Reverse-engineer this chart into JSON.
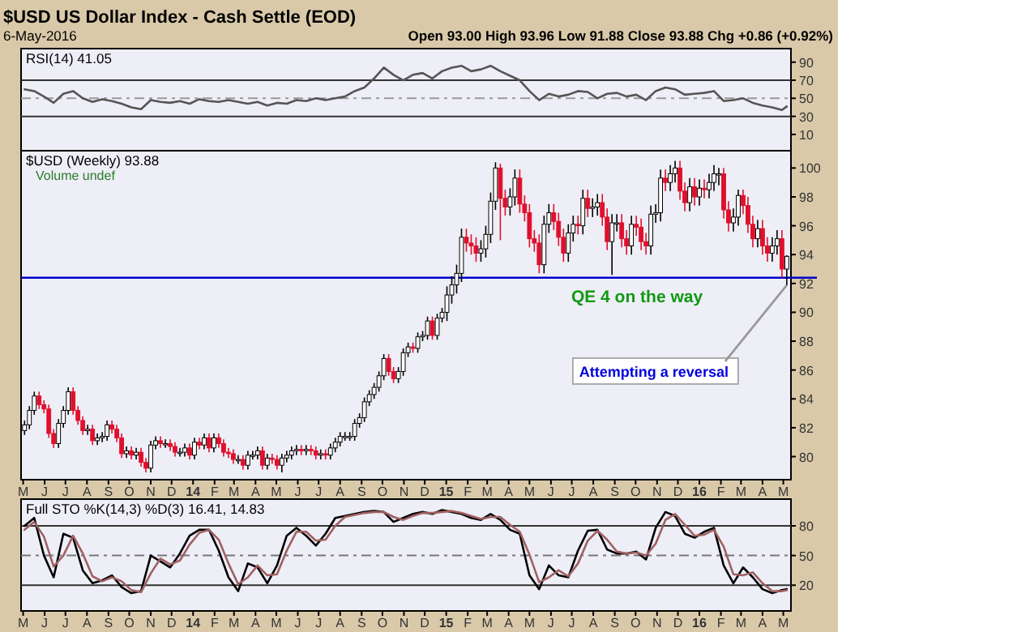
{
  "chart_data": [
    {
      "type": "line",
      "title": "$USD US Dollar Index - Cash Settle (EOD)",
      "subtitle": "6-May-2016",
      "ylabel": "RSI(14) 41.05",
      "annotations": [
        "Open 93.00 High 93.96 Low 91.88 Close 93.88 Chg +0.86 (+0.92%)"
      ],
      "x": [
        "2013-05-03",
        "2013-05-17",
        "2013-05-31",
        "2013-06-14",
        "2013-06-28",
        "2013-07-12",
        "2013-07-26",
        "2013-08-09",
        "2013-08-23",
        "2013-09-06",
        "2013-09-20",
        "2013-10-04",
        "2013-10-18",
        "2013-11-01",
        "2013-11-15",
        "2013-11-29",
        "2013-12-13",
        "2013-12-27",
        "2014-01-10",
        "2014-01-24",
        "2014-02-07",
        "2014-02-21",
        "2014-03-07",
        "2014-03-21",
        "2014-04-04",
        "2014-04-18",
        "2014-05-02",
        "2014-05-16",
        "2014-05-30",
        "2014-06-13",
        "2014-06-27",
        "2014-07-11",
        "2014-07-25",
        "2014-08-08",
        "2014-08-22",
        "2014-09-05",
        "2014-09-19",
        "2014-10-03",
        "2014-10-17",
        "2014-10-31",
        "2014-11-14",
        "2014-11-28",
        "2014-12-12",
        "2014-12-26",
        "2015-01-09",
        "2015-01-23",
        "2015-02-06",
        "2015-02-20",
        "2015-03-06",
        "2015-03-20",
        "2015-04-03",
        "2015-04-17",
        "2015-05-01",
        "2015-05-15",
        "2015-05-29",
        "2015-06-12",
        "2015-06-26",
        "2015-07-10",
        "2015-07-24",
        "2015-08-07",
        "2015-08-21",
        "2015-09-04",
        "2015-09-18",
        "2015-10-02",
        "2015-10-16",
        "2015-10-30",
        "2015-11-13",
        "2015-11-27",
        "2015-12-11",
        "2015-12-25",
        "2016-01-08",
        "2016-01-22",
        "2016-02-05",
        "2016-02-19",
        "2016-03-04",
        "2016-03-18",
        "2016-04-01",
        "2016-04-15",
        "2016-04-29",
        "2016-05-06"
      ],
      "series": [
        {
          "color": "#555555",
          "values": [
            60,
            58,
            52,
            45,
            55,
            58,
            50,
            46,
            49,
            47,
            44,
            40,
            38,
            48,
            46,
            45,
            47,
            44,
            49,
            47,
            46,
            48,
            46,
            44,
            46,
            42,
            45,
            44,
            48,
            47,
            50,
            48,
            50,
            52,
            58,
            62,
            72,
            84,
            76,
            70,
            76,
            78,
            72,
            80,
            84,
            86,
            80,
            82,
            86,
            80,
            75,
            70,
            58,
            48,
            55,
            52,
            54,
            58,
            57,
            50,
            55,
            56,
            52,
            54,
            48,
            58,
            62,
            60,
            54,
            55,
            56,
            58,
            47,
            48,
            50,
            45,
            42,
            40,
            37,
            41
          ]
        }
      ],
      "xlim": [
        "2013-04-28",
        "2016-05-12"
      ],
      "ylim": [
        -8,
        105
      ],
      "yticks": [
        10,
        30,
        50,
        70,
        90
      ],
      "tick_labels": "y",
      "ref_lines": [
        {
          "axis": "y",
          "value": 70,
          "color": "#333333"
        },
        {
          "axis": "y",
          "value": 30,
          "color": "#333333"
        },
        {
          "axis": "y",
          "value": 50,
          "color": "#999999",
          "line_style": "dashed"
        }
      ]
    },
    {
      "type": "candlestick",
      "ylabel": "$USD (Weekly) 93.88",
      "annotations": [
        "Volume undef",
        {
          "text": "Attempting a reversal",
          "x": "2016-05-06",
          "y": 91.88
        }
      ],
      "x": [
        "2013-05-03",
        "2013-05-10",
        "2013-05-17",
        "2013-05-24",
        "2013-05-31",
        "2013-06-07",
        "2013-06-14",
        "2013-06-21",
        "2013-06-28",
        "2013-07-05",
        "2013-07-12",
        "2013-07-19",
        "2013-07-26",
        "2013-08-02",
        "2013-08-09",
        "2013-08-16",
        "2013-08-23",
        "2013-08-30",
        "2013-09-06",
        "2013-09-13",
        "2013-09-20",
        "2013-09-27",
        "2013-10-04",
        "2013-10-11",
        "2013-10-18",
        "2013-10-25",
        "2013-11-01",
        "2013-11-08",
        "2013-11-15",
        "2013-11-22",
        "2013-11-29",
        "2013-12-06",
        "2013-12-13",
        "2013-12-20",
        "2013-12-27",
        "2014-01-03",
        "2014-01-10",
        "2014-01-17",
        "2014-01-24",
        "2014-01-31",
        "2014-02-07",
        "2014-02-14",
        "2014-02-21",
        "2014-02-28",
        "2014-03-07",
        "2014-03-14",
        "2014-03-21",
        "2014-03-28",
        "2014-04-04",
        "2014-04-11",
        "2014-04-18",
        "2014-04-25",
        "2014-05-02",
        "2014-05-09",
        "2014-05-16",
        "2014-05-23",
        "2014-05-30",
        "2014-06-06",
        "2014-06-13",
        "2014-06-20",
        "2014-06-27",
        "2014-07-04",
        "2014-07-11",
        "2014-07-18",
        "2014-07-25",
        "2014-08-01",
        "2014-08-08",
        "2014-08-15",
        "2014-08-22",
        "2014-08-29",
        "2014-09-05",
        "2014-09-12",
        "2014-09-19",
        "2014-09-26",
        "2014-10-03",
        "2014-10-10",
        "2014-10-17",
        "2014-10-24",
        "2014-10-31",
        "2014-11-07",
        "2014-11-14",
        "2014-11-21",
        "2014-11-28",
        "2014-12-05",
        "2014-12-12",
        "2014-12-19",
        "2014-12-26",
        "2015-01-02",
        "2015-01-09",
        "2015-01-16",
        "2015-01-23",
        "2015-01-30",
        "2015-02-06",
        "2015-02-13",
        "2015-02-20",
        "2015-02-27",
        "2015-03-06",
        "2015-03-13",
        "2015-03-20",
        "2015-03-27",
        "2015-04-03",
        "2015-04-10",
        "2015-04-17",
        "2015-04-24",
        "2015-05-01",
        "2015-05-08",
        "2015-05-15",
        "2015-05-22",
        "2015-05-29",
        "2015-06-05",
        "2015-06-12",
        "2015-06-19",
        "2015-06-26",
        "2015-07-03",
        "2015-07-10",
        "2015-07-17",
        "2015-07-24",
        "2015-07-31",
        "2015-08-07",
        "2015-08-14",
        "2015-08-21",
        "2015-08-28",
        "2015-09-04",
        "2015-09-11",
        "2015-09-18",
        "2015-09-25",
        "2015-10-02",
        "2015-10-09",
        "2015-10-16",
        "2015-10-23",
        "2015-10-30",
        "2015-11-06",
        "2015-11-13",
        "2015-11-20",
        "2015-11-27",
        "2015-12-04",
        "2015-12-11",
        "2015-12-18",
        "2015-12-25",
        "2016-01-01",
        "2016-01-08",
        "2016-01-15",
        "2016-01-22",
        "2016-01-29",
        "2016-02-05",
        "2016-02-12",
        "2016-02-19",
        "2016-02-26",
        "2016-03-04",
        "2016-03-11",
        "2016-03-18",
        "2016-03-25",
        "2016-04-01",
        "2016-04-08",
        "2016-04-15",
        "2016-04-22",
        "2016-04-29",
        "2016-05-06"
      ],
      "ohlc": [
        [
          81.8,
          82.5,
          81.5,
          82.2
        ],
        [
          82.2,
          83.5,
          81.9,
          83.2
        ],
        [
          83.2,
          84.5,
          82.9,
          84.2
        ],
        [
          84.2,
          84.5,
          83.3,
          83.6
        ],
        [
          83.6,
          83.9,
          83.0,
          83.3
        ],
        [
          83.3,
          83.6,
          81.3,
          81.6
        ],
        [
          81.6,
          81.9,
          80.6,
          80.9
        ],
        [
          80.9,
          82.6,
          80.6,
          82.3
        ],
        [
          82.3,
          83.5,
          82.0,
          83.2
        ],
        [
          83.2,
          84.8,
          82.9,
          84.5
        ],
        [
          84.5,
          84.8,
          82.9,
          83.2
        ],
        [
          83.2,
          83.5,
          82.2,
          82.5
        ],
        [
          82.5,
          82.8,
          81.5,
          81.8
        ],
        [
          81.8,
          82.2,
          81.5,
          81.9
        ],
        [
          81.9,
          82.2,
          80.8,
          81.1
        ],
        [
          81.1,
          81.6,
          80.8,
          81.3
        ],
        [
          81.3,
          81.7,
          81.0,
          81.4
        ],
        [
          81.4,
          82.5,
          81.1,
          82.2
        ],
        [
          82.2,
          82.5,
          81.6,
          81.9
        ],
        [
          81.9,
          82.2,
          81.0,
          81.3
        ],
        [
          81.3,
          81.6,
          79.9,
          80.2
        ],
        [
          80.2,
          80.7,
          79.9,
          80.4
        ],
        [
          80.4,
          80.7,
          79.8,
          80.1
        ],
        [
          80.1,
          80.6,
          79.8,
          80.3
        ],
        [
          80.3,
          80.6,
          79.3,
          79.6
        ],
        [
          79.6,
          79.9,
          78.9,
          79.2
        ],
        [
          79.2,
          81.1,
          78.9,
          80.8
        ],
        [
          80.8,
          81.4,
          80.5,
          81.1
        ],
        [
          81.1,
          81.4,
          80.6,
          80.9
        ],
        [
          80.9,
          81.2,
          80.6,
          80.9
        ],
        [
          80.9,
          81.2,
          80.4,
          80.7
        ],
        [
          80.7,
          81.0,
          80.0,
          80.3
        ],
        [
          80.3,
          80.6,
          80.0,
          80.3
        ],
        [
          80.3,
          80.9,
          80.0,
          80.6
        ],
        [
          80.6,
          80.9,
          79.8,
          80.1
        ],
        [
          80.1,
          81.3,
          79.8,
          81.0
        ],
        [
          81.0,
          81.3,
          80.5,
          80.8
        ],
        [
          80.8,
          81.6,
          80.5,
          81.3
        ],
        [
          81.3,
          81.6,
          80.3,
          80.6
        ],
        [
          80.6,
          81.6,
          80.3,
          81.3
        ],
        [
          81.3,
          81.6,
          80.6,
          80.9
        ],
        [
          80.9,
          81.2,
          80.0,
          80.3
        ],
        [
          80.3,
          80.6,
          79.9,
          80.2
        ],
        [
          80.2,
          80.5,
          79.5,
          79.8
        ],
        [
          79.8,
          80.1,
          79.5,
          79.8
        ],
        [
          79.8,
          80.1,
          79.1,
          79.4
        ],
        [
          79.4,
          80.4,
          79.1,
          80.1
        ],
        [
          80.1,
          80.4,
          79.8,
          80.1
        ],
        [
          80.1,
          80.7,
          79.8,
          80.4
        ],
        [
          80.4,
          80.7,
          79.1,
          79.4
        ],
        [
          79.4,
          80.2,
          79.1,
          79.9
        ],
        [
          79.9,
          80.2,
          79.5,
          79.8
        ],
        [
          79.8,
          80.1,
          79.1,
          79.4
        ],
        [
          79.4,
          80.2,
          78.9,
          79.9
        ],
        [
          79.9,
          80.4,
          79.6,
          80.1
        ],
        [
          80.1,
          80.7,
          79.8,
          80.4
        ],
        [
          80.4,
          80.8,
          80.1,
          80.5
        ],
        [
          80.5,
          80.8,
          80.1,
          80.4
        ],
        [
          80.4,
          80.8,
          80.1,
          80.5
        ],
        [
          80.5,
          80.8,
          80.1,
          80.4
        ],
        [
          80.4,
          80.7,
          79.8,
          80.1
        ],
        [
          80.1,
          80.5,
          79.8,
          80.2
        ],
        [
          80.2,
          80.5,
          79.8,
          80.1
        ],
        [
          80.1,
          80.9,
          79.8,
          80.6
        ],
        [
          80.6,
          81.3,
          80.3,
          81.0
        ],
        [
          81.0,
          81.7,
          80.7,
          81.4
        ],
        [
          81.4,
          81.7,
          81.1,
          81.4
        ],
        [
          81.4,
          81.7,
          81.1,
          81.4
        ],
        [
          81.4,
          82.6,
          81.1,
          82.3
        ],
        [
          82.3,
          83.0,
          82.0,
          82.7
        ],
        [
          82.7,
          84.1,
          82.4,
          83.8
        ],
        [
          83.8,
          84.6,
          83.5,
          84.3
        ],
        [
          84.3,
          85.1,
          84.0,
          84.8
        ],
        [
          84.8,
          85.9,
          84.5,
          85.6
        ],
        [
          85.6,
          87.1,
          85.3,
          86.8
        ],
        [
          86.8,
          87.1,
          85.6,
          85.9
        ],
        [
          85.9,
          86.2,
          85.1,
          85.4
        ],
        [
          85.4,
          86.2,
          85.1,
          85.9
        ],
        [
          85.9,
          87.5,
          85.6,
          87.2
        ],
        [
          87.2,
          87.9,
          86.9,
          87.6
        ],
        [
          87.6,
          87.9,
          87.2,
          87.5
        ],
        [
          87.5,
          88.6,
          87.2,
          88.3
        ],
        [
          88.3,
          88.7,
          88.0,
          88.4
        ],
        [
          88.4,
          89.7,
          88.1,
          89.4
        ],
        [
          89.4,
          89.7,
          88.1,
          88.4
        ],
        [
          88.4,
          89.9,
          88.1,
          89.6
        ],
        [
          89.6,
          90.3,
          89.3,
          90.0
        ],
        [
          90.0,
          91.8,
          89.4,
          91.2
        ],
        [
          91.2,
          92.5,
          90.6,
          91.9
        ],
        [
          91.9,
          93.3,
          91.3,
          92.7
        ],
        [
          92.7,
          95.8,
          92.1,
          95.2
        ],
        [
          95.2,
          95.8,
          94.2,
          94.8
        ],
        [
          94.8,
          95.4,
          94.0,
          94.6
        ],
        [
          94.6,
          95.2,
          93.5,
          94.1
        ],
        [
          94.1,
          95.0,
          93.5,
          94.4
        ],
        [
          94.4,
          96.0,
          93.8,
          95.4
        ],
        [
          95.4,
          98.3,
          94.8,
          97.7
        ],
        [
          97.7,
          100.4,
          97.1,
          100.0
        ],
        [
          100.0,
          100.3,
          95.0,
          97.9
        ],
        [
          97.9,
          98.5,
          96.7,
          97.3
        ],
        [
          97.3,
          98.6,
          96.7,
          98.0
        ],
        [
          98.0,
          99.9,
          97.4,
          99.3
        ],
        [
          99.3,
          99.9,
          96.9,
          97.5
        ],
        [
          97.5,
          98.1,
          96.3,
          96.9
        ],
        [
          96.9,
          97.5,
          94.5,
          95.1
        ],
        [
          95.1,
          95.7,
          94.2,
          94.8
        ],
        [
          94.8,
          95.4,
          92.7,
          93.3
        ],
        [
          93.3,
          96.7,
          92.7,
          96.1
        ],
        [
          96.1,
          97.5,
          95.5,
          96.9
        ],
        [
          96.9,
          97.5,
          95.7,
          96.3
        ],
        [
          96.3,
          96.9,
          94.6,
          95.2
        ],
        [
          95.2,
          95.8,
          93.5,
          94.1
        ],
        [
          94.1,
          96.1,
          93.5,
          95.5
        ],
        [
          95.5,
          96.7,
          94.9,
          96.1
        ],
        [
          96.1,
          96.7,
          95.4,
          96.0
        ],
        [
          96.0,
          98.5,
          95.4,
          97.9
        ],
        [
          97.9,
          98.5,
          96.6,
          97.2
        ],
        [
          97.2,
          97.9,
          96.6,
          97.3
        ],
        [
          97.3,
          98.2,
          96.7,
          97.6
        ],
        [
          97.6,
          98.2,
          96.0,
          96.6
        ],
        [
          96.6,
          97.2,
          94.3,
          94.9
        ],
        [
          94.9,
          96.8,
          92.6,
          96.2
        ],
        [
          96.2,
          96.8,
          95.6,
          96.2
        ],
        [
          96.2,
          96.8,
          94.5,
          95.1
        ],
        [
          95.1,
          95.7,
          94.0,
          94.6
        ],
        [
          94.6,
          96.7,
          94.0,
          96.1
        ],
        [
          96.1,
          96.7,
          95.3,
          95.9
        ],
        [
          95.9,
          96.5,
          94.3,
          94.9
        ],
        [
          94.9,
          95.5,
          94.0,
          94.6
        ],
        [
          94.6,
          97.4,
          94.0,
          96.8
        ],
        [
          96.8,
          97.5,
          96.2,
          96.9
        ],
        [
          96.9,
          99.9,
          96.3,
          99.3
        ],
        [
          99.3,
          99.9,
          98.4,
          99.0
        ],
        [
          99.0,
          100.2,
          98.4,
          99.6
        ],
        [
          99.6,
          100.5,
          99.0,
          100.0
        ],
        [
          100.0,
          100.5,
          97.8,
          98.4
        ],
        [
          98.4,
          99.0,
          97.0,
          97.6
        ],
        [
          97.6,
          99.3,
          97.0,
          98.7
        ],
        [
          98.7,
          99.3,
          97.4,
          98.0
        ],
        [
          98.0,
          99.2,
          97.4,
          98.6
        ],
        [
          98.6,
          99.2,
          97.9,
          98.5
        ],
        [
          98.5,
          99.6,
          97.9,
          99.0
        ],
        [
          99.0,
          100.2,
          98.4,
          99.6
        ],
        [
          99.6,
          100.0,
          98.8,
          99.6
        ],
        [
          99.6,
          100.0,
          96.5,
          97.1
        ],
        [
          97.1,
          97.7,
          95.6,
          96.2
        ],
        [
          96.2,
          97.2,
          95.6,
          96.6
        ],
        [
          96.6,
          98.5,
          96.0,
          98.1
        ],
        [
          98.1,
          98.5,
          96.8,
          97.4
        ],
        [
          97.4,
          98.0,
          95.5,
          96.1
        ],
        [
          96.1,
          96.7,
          94.5,
          95.1
        ],
        [
          95.1,
          96.4,
          94.5,
          95.8
        ],
        [
          95.8,
          96.4,
          94.0,
          94.6
        ],
        [
          94.6,
          95.2,
          93.5,
          94.1
        ],
        [
          94.1,
          95.2,
          93.5,
          94.6
        ],
        [
          94.6,
          95.7,
          94.0,
          95.1
        ],
        [
          95.1,
          95.7,
          92.4,
          93.0
        ],
        [
          93.0,
          93.96,
          91.88,
          93.88
        ]
      ],
      "xlim": [
        "2013-04-28",
        "2016-05-12"
      ],
      "xticks": [
        {
          "value": "2013-05-01",
          "label": "M"
        },
        {
          "value": "2013-06-01",
          "label": "J"
        },
        {
          "value": "2013-07-01",
          "label": "J"
        },
        {
          "value": "2013-08-01",
          "label": "A"
        },
        {
          "value": "2013-09-01",
          "label": "S"
        },
        {
          "value": "2013-10-01",
          "label": "O"
        },
        {
          "value": "2013-11-01",
          "label": "N"
        },
        {
          "value": "2013-12-01",
          "label": "D"
        },
        {
          "value": "2014-01-01",
          "label": "14"
        },
        {
          "value": "2014-02-01",
          "label": "F"
        },
        {
          "value": "2014-03-01",
          "label": "M"
        },
        {
          "value": "2014-04-01",
          "label": "A"
        },
        {
          "value": "2014-05-01",
          "label": "M"
        },
        {
          "value": "2014-06-01",
          "label": "J"
        },
        {
          "value": "2014-07-01",
          "label": "J"
        },
        {
          "value": "2014-08-01",
          "label": "A"
        },
        {
          "value": "2014-09-01",
          "label": "S"
        },
        {
          "value": "2014-10-01",
          "label": "O"
        },
        {
          "value": "2014-11-01",
          "label": "N"
        },
        {
          "value": "2014-12-01",
          "label": "D"
        },
        {
          "value": "2015-01-01",
          "label": "15"
        },
        {
          "value": "2015-02-01",
          "label": "F"
        },
        {
          "value": "2015-03-01",
          "label": "M"
        },
        {
          "value": "2015-04-01",
          "label": "A"
        },
        {
          "value": "2015-05-01",
          "label": "M"
        },
        {
          "value": "2015-06-01",
          "label": "J"
        },
        {
          "value": "2015-07-01",
          "label": "J"
        },
        {
          "value": "2015-08-01",
          "label": "A"
        },
        {
          "value": "2015-09-01",
          "label": "S"
        },
        {
          "value": "2015-10-01",
          "label": "O"
        },
        {
          "value": "2015-11-01",
          "label": "N"
        },
        {
          "value": "2015-12-01",
          "label": "D"
        },
        {
          "value": "2016-01-01",
          "label": "16"
        },
        {
          "value": "2016-02-01",
          "label": "F"
        },
        {
          "value": "2016-03-01",
          "label": "M"
        },
        {
          "value": "2016-04-01",
          "label": "A"
        },
        {
          "value": "2016-05-01",
          "label": "M"
        }
      ],
      "ylim": [
        78.4,
        101.2
      ],
      "yticks": [
        80,
        82,
        84,
        86,
        88,
        90,
        92,
        94,
        96,
        98,
        100
      ],
      "ref_lines": [
        {
          "axis": "y",
          "value": 92.4,
          "label": "QE 4 on the way",
          "color": "#0000cc"
        }
      ]
    },
    {
      "type": "line",
      "ylabel": "Full STO %K(14,3) %D(3) 16.41, 14.83",
      "x": [
        "2013-05-03",
        "2013-05-17",
        "2013-05-31",
        "2013-06-14",
        "2013-06-28",
        "2013-07-12",
        "2013-07-26",
        "2013-08-09",
        "2013-08-23",
        "2013-09-06",
        "2013-09-20",
        "2013-10-04",
        "2013-10-18",
        "2013-11-01",
        "2013-11-15",
        "2013-11-29",
        "2013-12-13",
        "2013-12-27",
        "2014-01-10",
        "2014-01-24",
        "2014-02-07",
        "2014-02-21",
        "2014-03-07",
        "2014-03-21",
        "2014-04-04",
        "2014-04-18",
        "2014-05-02",
        "2014-05-16",
        "2014-05-30",
        "2014-06-13",
        "2014-06-27",
        "2014-07-11",
        "2014-07-25",
        "2014-08-08",
        "2014-08-22",
        "2014-09-05",
        "2014-09-19",
        "2014-10-03",
        "2014-10-17",
        "2014-10-31",
        "2014-11-14",
        "2014-11-28",
        "2014-12-12",
        "2014-12-26",
        "2015-01-09",
        "2015-01-23",
        "2015-02-06",
        "2015-02-20",
        "2015-03-06",
        "2015-03-20",
        "2015-04-03",
        "2015-04-17",
        "2015-05-01",
        "2015-05-15",
        "2015-05-29",
        "2015-06-12",
        "2015-06-26",
        "2015-07-10",
        "2015-07-24",
        "2015-08-07",
        "2015-08-21",
        "2015-09-04",
        "2015-09-18",
        "2015-10-02",
        "2015-10-16",
        "2015-10-30",
        "2015-11-13",
        "2015-11-27",
        "2015-12-11",
        "2015-12-25",
        "2016-01-08",
        "2016-01-22",
        "2016-02-05",
        "2016-02-19",
        "2016-03-04",
        "2016-03-18",
        "2016-04-01",
        "2016-04-15",
        "2016-04-29",
        "2016-05-06"
      ],
      "series": [
        {
          "color": "#000000",
          "values": [
            80,
            88,
            50,
            28,
            72,
            68,
            35,
            22,
            25,
            30,
            18,
            12,
            14,
            50,
            44,
            38,
            52,
            70,
            76,
            76,
            55,
            28,
            14,
            42,
            38,
            22,
            40,
            70,
            78,
            70,
            60,
            72,
            88,
            90,
            92,
            94,
            95,
            94,
            84,
            88,
            92,
            94,
            92,
            96,
            94,
            92,
            88,
            86,
            92,
            86,
            76,
            72,
            30,
            16,
            40,
            30,
            28,
            55,
            75,
            76,
            56,
            52,
            52,
            54,
            46,
            78,
            94,
            90,
            72,
            68,
            74,
            78,
            40,
            22,
            38,
            28,
            16,
            12,
            15,
            16
          ]
        },
        {
          "color": "#a06060",
          "values": [
            76,
            84,
            69,
            39,
            50,
            70,
            52,
            29,
            24,
            28,
            24,
            15,
            13,
            32,
            47,
            41,
            45,
            61,
            73,
            76,
            66,
            42,
            21,
            28,
            40,
            30,
            31,
            55,
            74,
            74,
            65,
            66,
            80,
            89,
            91,
            93,
            94,
            94,
            89,
            86,
            90,
            93,
            93,
            94,
            95,
            93,
            90,
            87,
            89,
            89,
            81,
            74,
            51,
            23,
            28,
            35,
            29,
            42,
            65,
            75,
            66,
            54,
            52,
            53,
            50,
            62,
            86,
            92,
            81,
            70,
            71,
            76,
            59,
            31,
            30,
            33,
            22,
            14,
            14,
            15
          ]
        }
      ],
      "xlim": [
        "2013-04-28",
        "2016-05-12"
      ],
      "xticks": [
        {
          "value": "2013-05-01",
          "label": "M"
        },
        {
          "value": "2013-06-01",
          "label": "J"
        },
        {
          "value": "2013-07-01",
          "label": "J"
        },
        {
          "value": "2013-08-01",
          "label": "A"
        },
        {
          "value": "2013-09-01",
          "label": "S"
        },
        {
          "value": "2013-10-01",
          "label": "O"
        },
        {
          "value": "2013-11-01",
          "label": "N"
        },
        {
          "value": "2013-12-01",
          "label": "D"
        },
        {
          "value": "2014-01-01",
          "label": "14"
        },
        {
          "value": "2014-02-01",
          "label": "F"
        },
        {
          "value": "2014-03-01",
          "label": "M"
        },
        {
          "value": "2014-04-01",
          "label": "A"
        },
        {
          "value": "2014-05-01",
          "label": "M"
        },
        {
          "value": "2014-06-01",
          "label": "J"
        },
        {
          "value": "2014-07-01",
          "label": "J"
        },
        {
          "value": "2014-08-01",
          "label": "A"
        },
        {
          "value": "2014-09-01",
          "label": "S"
        },
        {
          "value": "2014-10-01",
          "label": "O"
        },
        {
          "value": "2014-11-01",
          "label": "N"
        },
        {
          "value": "2014-12-01",
          "label": "D"
        },
        {
          "value": "2015-01-01",
          "label": "15"
        },
        {
          "value": "2015-02-01",
          "label": "F"
        },
        {
          "value": "2015-03-01",
          "label": "M"
        },
        {
          "value": "2015-04-01",
          "label": "A"
        },
        {
          "value": "2015-05-01",
          "label": "M"
        },
        {
          "value": "2015-06-01",
          "label": "J"
        },
        {
          "value": "2015-07-01",
          "label": "J"
        },
        {
          "value": "2015-08-01",
          "label": "A"
        },
        {
          "value": "2015-09-01",
          "label": "S"
        },
        {
          "value": "2015-10-01",
          "label": "O"
        },
        {
          "value": "2015-11-01",
          "label": "N"
        },
        {
          "value": "2015-12-01",
          "label": "D"
        },
        {
          "value": "2016-01-01",
          "label": "16"
        },
        {
          "value": "2016-02-01",
          "label": "F"
        },
        {
          "value": "2016-03-01",
          "label": "M"
        },
        {
          "value": "2016-04-01",
          "label": "A"
        },
        {
          "value": "2016-05-01",
          "label": "M"
        }
      ],
      "ylim": [
        -6,
        107
      ],
      "yticks": [
        20,
        50,
        80
      ],
      "ref_lines": [
        {
          "axis": "y",
          "value": 80,
          "color": "#333333"
        },
        {
          "axis": "y",
          "value": 20,
          "color": "#333333"
        },
        {
          "axis": "y",
          "value": 50,
          "color": "#777777",
          "line_style": "dashed"
        }
      ]
    }
  ]
}
